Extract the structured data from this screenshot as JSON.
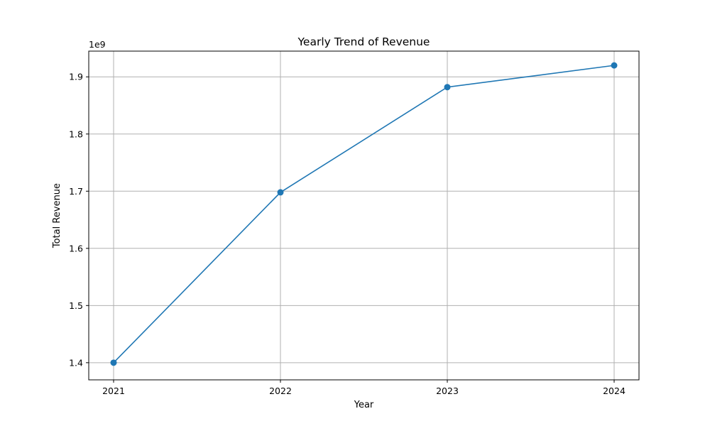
{
  "chart_data": {
    "type": "line",
    "title": "Yearly Trend of Revenue",
    "xlabel": "Year",
    "ylabel": "Total Revenue",
    "y_offset_label": "1e9",
    "x": [
      "2021",
      "2022",
      "2023",
      "2024"
    ],
    "series": [
      {
        "values": [
          1.4,
          1.698,
          1.882,
          1.92
        ],
        "color": "#1f77b4",
        "marker": "circle"
      }
    ],
    "value_scale": 1000000000,
    "ylim": [
      1.37,
      1.945
    ],
    "yticks": [
      "1.4",
      "1.5",
      "1.6",
      "1.7",
      "1.8",
      "1.9"
    ],
    "grid": true,
    "legend": "none"
  }
}
